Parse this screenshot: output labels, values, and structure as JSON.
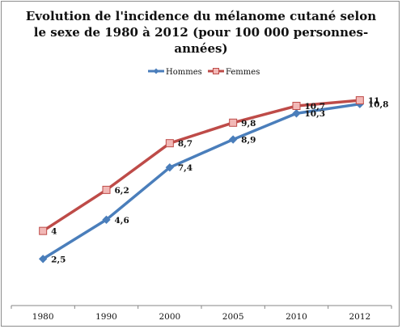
{
  "chart_data": {
    "type": "line",
    "title_lines": [
      "Evolution de l'incidence du mélanome cutané selon",
      "le sexe de 1980 à  2012 (pour 100 000 personnes-",
      "années)"
    ],
    "categories": [
      "1980",
      "1990",
      "2000",
      "2005",
      "2010",
      "2012"
    ],
    "series": [
      {
        "name": "Hommes",
        "color": "#4a7ebb",
        "marker": "diamond",
        "values": [
          2.5,
          4.6,
          7.4,
          8.9,
          10.3,
          10.8
        ],
        "labels": [
          "2,5",
          "4,6",
          "7,4",
          "8,9",
          "10,3",
          "10,8"
        ]
      },
      {
        "name": "Femmes",
        "color": "#be4b48",
        "marker": "square",
        "values": [
          4,
          6.2,
          8.7,
          9.8,
          10.7,
          11
        ],
        "labels": [
          "4",
          "6,2",
          "8,7",
          "9,8",
          "10,7",
          "11"
        ]
      }
    ],
    "ylim": [
      0,
      12
    ],
    "grid": false,
    "legend_position": "top"
  }
}
